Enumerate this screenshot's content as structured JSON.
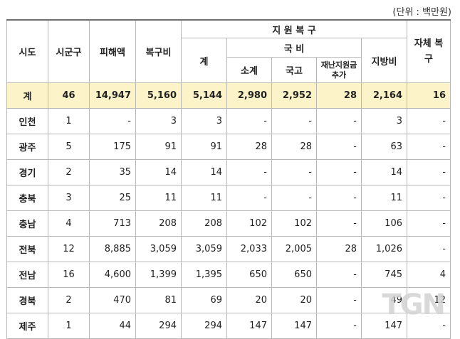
{
  "unit_label": "(단위 : 백만원)",
  "headers": {
    "region": "시도",
    "count": "시군구",
    "damage": "피해액",
    "recovery": "복구비",
    "support_group": "지 원 복 구",
    "total": "계",
    "national_group": "국 비",
    "subtotal": "소계",
    "treasury": "국고",
    "disaster_extra": "재난지원금 추가",
    "local": "지방비",
    "self": "자체 복구"
  },
  "total_row": {
    "region": "계",
    "count": "46",
    "damage": "14,947",
    "recovery": "5,160",
    "total": "5,144",
    "subtotal": "2,980",
    "treasury": "2,952",
    "extra": "28",
    "local": "2,164",
    "self": "16"
  },
  "rows": [
    {
      "region": "인천",
      "count": "1",
      "damage": "-",
      "recovery": "3",
      "total": "3",
      "subtotal": "-",
      "treasury": "-",
      "extra": "-",
      "local": "3",
      "self": "-"
    },
    {
      "region": "광주",
      "count": "5",
      "damage": "175",
      "recovery": "91",
      "total": "91",
      "subtotal": "28",
      "treasury": "28",
      "extra": "-",
      "local": "63",
      "self": "-"
    },
    {
      "region": "경기",
      "count": "2",
      "damage": "35",
      "recovery": "14",
      "total": "14",
      "subtotal": "-",
      "treasury": "-",
      "extra": "-",
      "local": "14",
      "self": "-"
    },
    {
      "region": "충북",
      "count": "3",
      "damage": "25",
      "recovery": "11",
      "total": "11",
      "subtotal": "-",
      "treasury": "-",
      "extra": "-",
      "local": "11",
      "self": "-"
    },
    {
      "region": "충남",
      "count": "4",
      "damage": "713",
      "recovery": "208",
      "total": "208",
      "subtotal": "102",
      "treasury": "102",
      "extra": "-",
      "local": "106",
      "self": "-"
    },
    {
      "region": "전북",
      "count": "12",
      "damage": "8,885",
      "recovery": "3,059",
      "total": "3,059",
      "subtotal": "2,033",
      "treasury": "2,005",
      "extra": "28",
      "local": "1,026",
      "self": "-"
    },
    {
      "region": "전남",
      "count": "16",
      "damage": "4,600",
      "recovery": "1,399",
      "total": "1,395",
      "subtotal": "650",
      "treasury": "650",
      "extra": "-",
      "local": "745",
      "self": "4"
    },
    {
      "region": "경북",
      "count": "2",
      "damage": "470",
      "recovery": "81",
      "total": "69",
      "subtotal": "20",
      "treasury": "20",
      "extra": "-",
      "local": "49",
      "self": "12"
    },
    {
      "region": "제주",
      "count": "1",
      "damage": "44",
      "recovery": "294",
      "total": "294",
      "subtotal": "147",
      "treasury": "147",
      "extra": "-",
      "local": "147",
      "self": "-"
    }
  ],
  "watermark": "TGN"
}
